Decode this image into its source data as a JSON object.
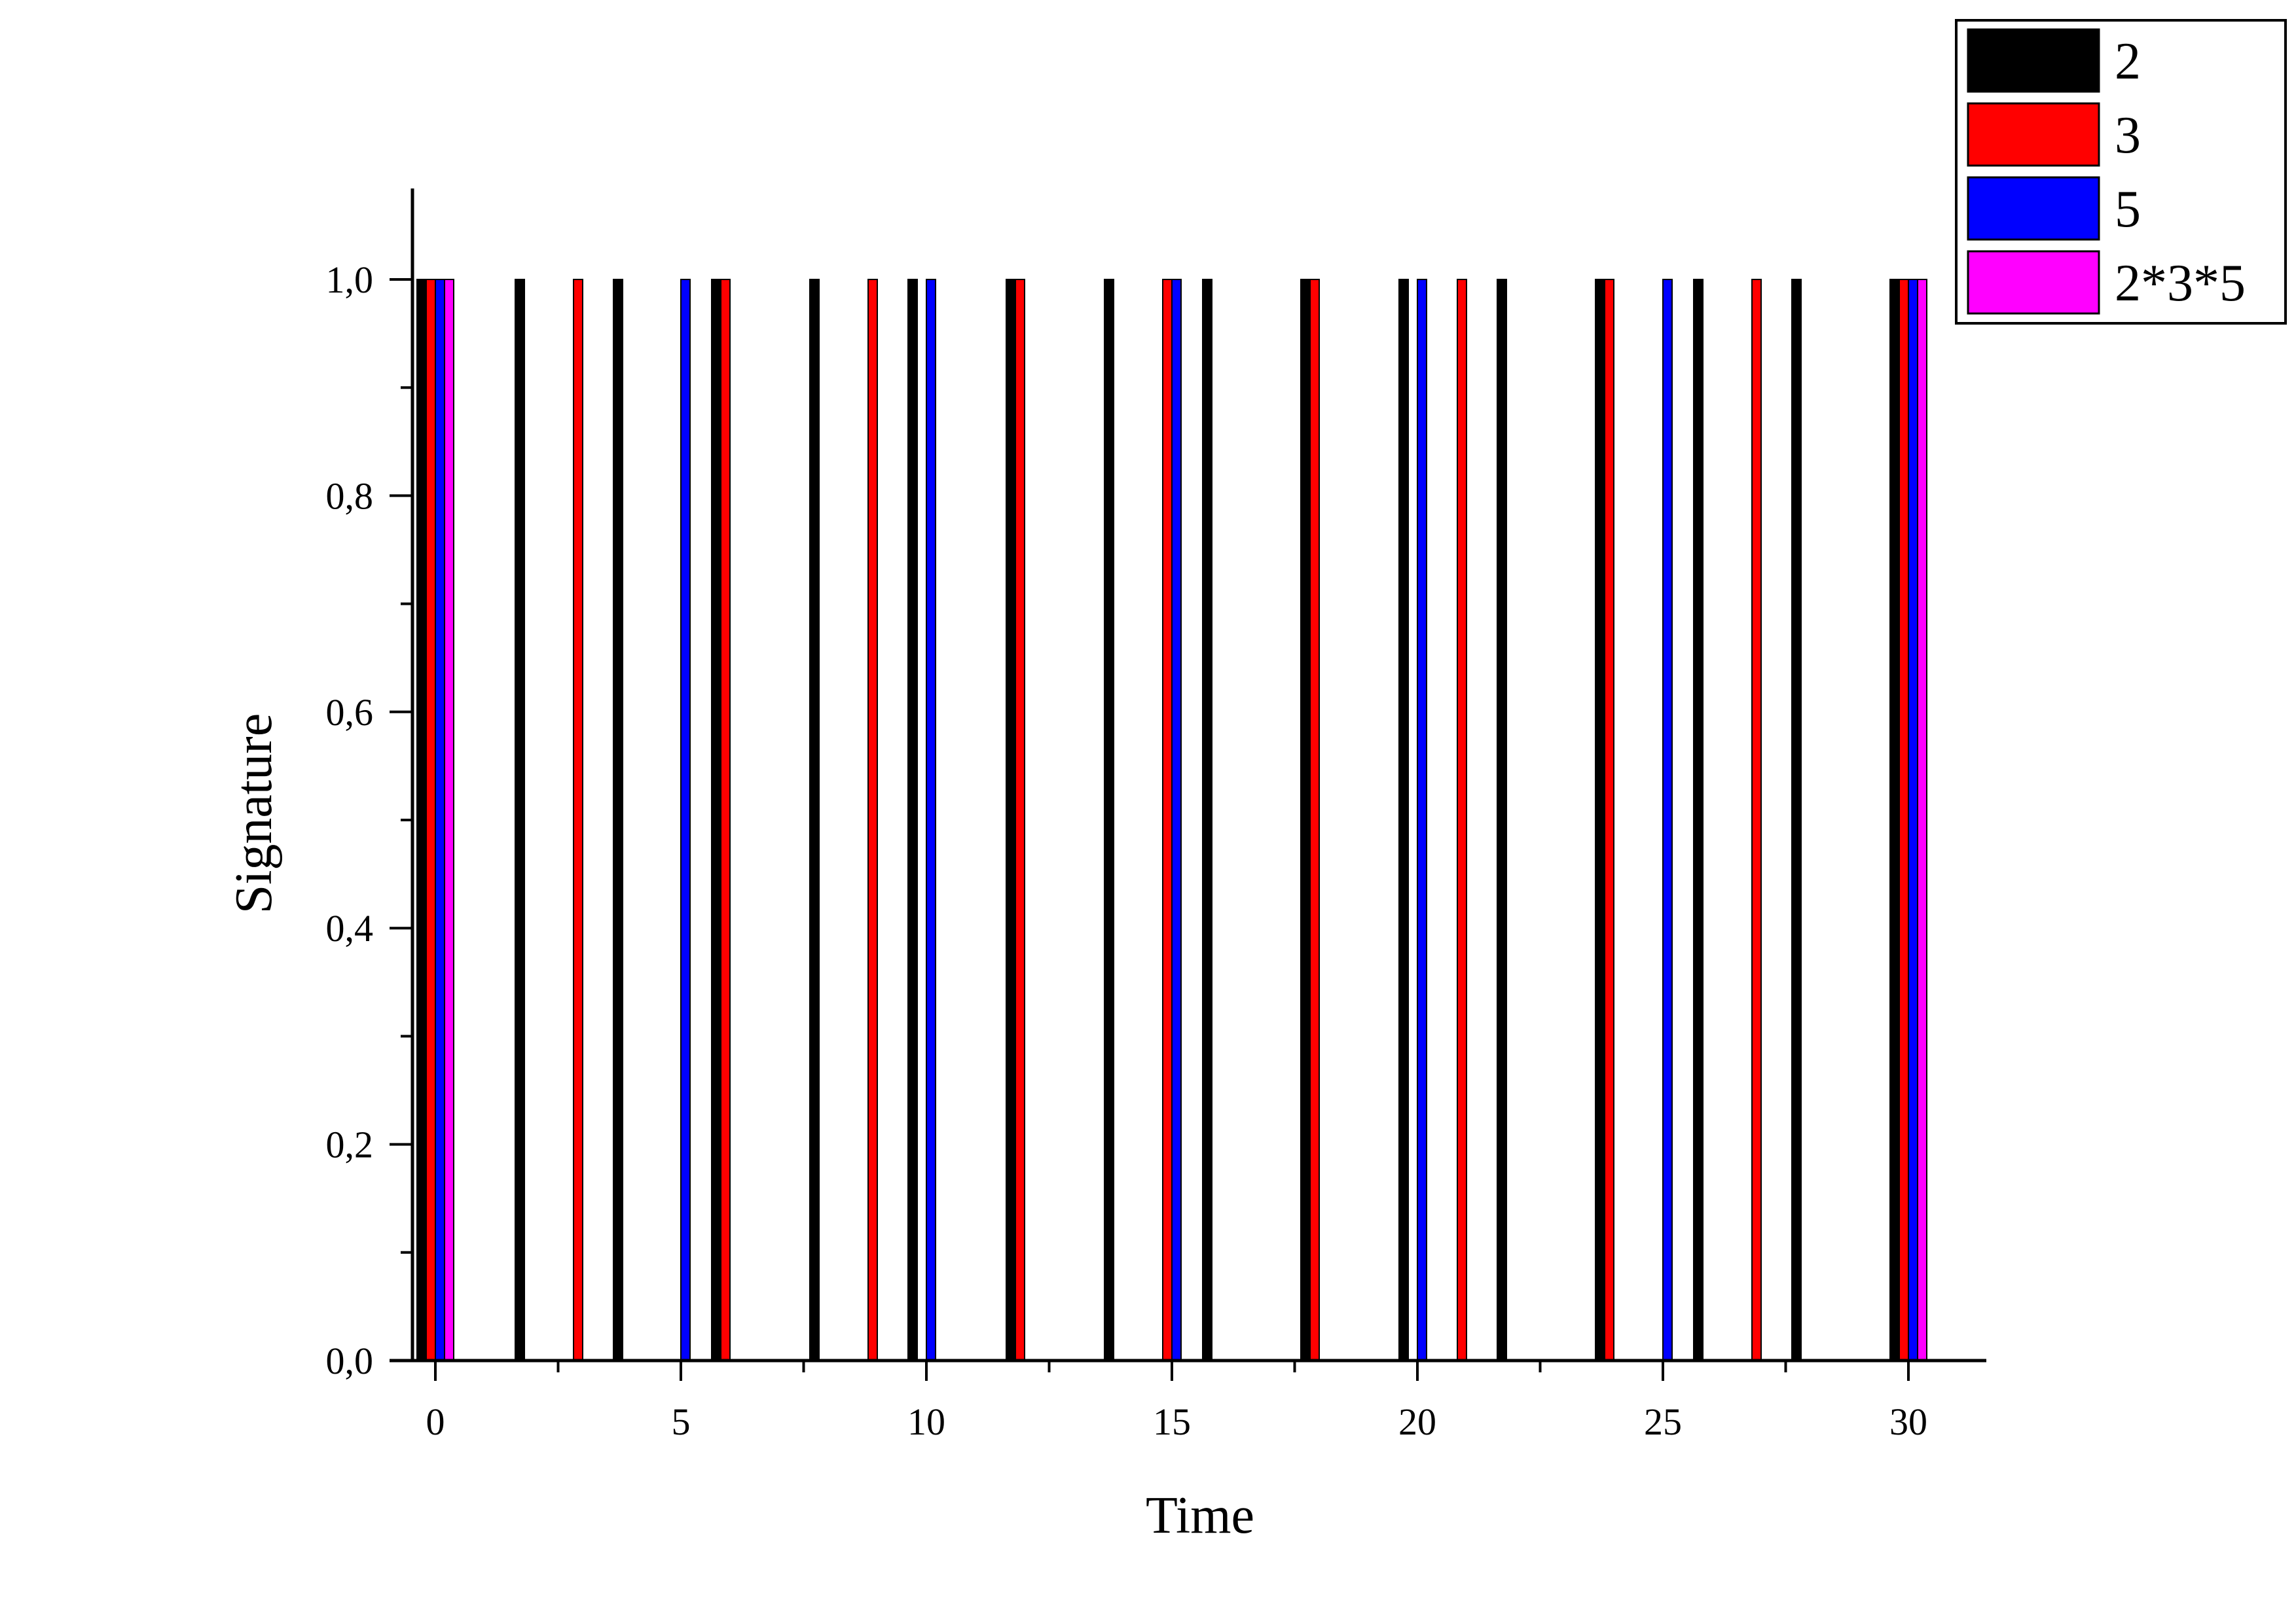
{
  "chart_data": {
    "type": "bar",
    "xlabel": "Time",
    "ylabel": "Signature",
    "xlim": [
      -0.5,
      31.5
    ],
    "ylim": [
      0,
      1.08
    ],
    "x_ticks": [
      0,
      5,
      10,
      15,
      20,
      25,
      30
    ],
    "y_ticks": [
      0.0,
      0.2,
      0.4,
      0.6,
      0.8,
      1.0
    ],
    "x_tick_labels": [
      "0",
      "5",
      "10",
      "15",
      "20",
      "25",
      "30"
    ],
    "y_tick_labels": [
      "0,0",
      "0,2",
      "0,4",
      "0,6",
      "0,8",
      "1,0"
    ],
    "grid": false,
    "legend_position": "top-right",
    "series": [
      {
        "name": "2",
        "color": "#000000",
        "x": [
          0,
          2,
          4,
          6,
          8,
          10,
          12,
          14,
          16,
          18,
          20,
          22,
          24,
          26,
          28,
          30
        ],
        "values": [
          1,
          1,
          1,
          1,
          1,
          1,
          1,
          1,
          1,
          1,
          1,
          1,
          1,
          1,
          1,
          1
        ]
      },
      {
        "name": "3",
        "color": "#ff0000",
        "x": [
          0,
          3,
          6,
          9,
          12,
          15,
          18,
          21,
          24,
          27,
          30
        ],
        "values": [
          1,
          1,
          1,
          1,
          1,
          1,
          1,
          1,
          1,
          1,
          1
        ]
      },
      {
        "name": "5",
        "color": "#0000ff",
        "x": [
          0,
          5,
          10,
          15,
          20,
          25,
          30
        ],
        "values": [
          1,
          1,
          1,
          1,
          1,
          1,
          1
        ]
      },
      {
        "name": "2*3*5",
        "color": "#ff00ff",
        "x": [
          0,
          30
        ],
        "values": [
          1,
          1
        ]
      }
    ]
  }
}
